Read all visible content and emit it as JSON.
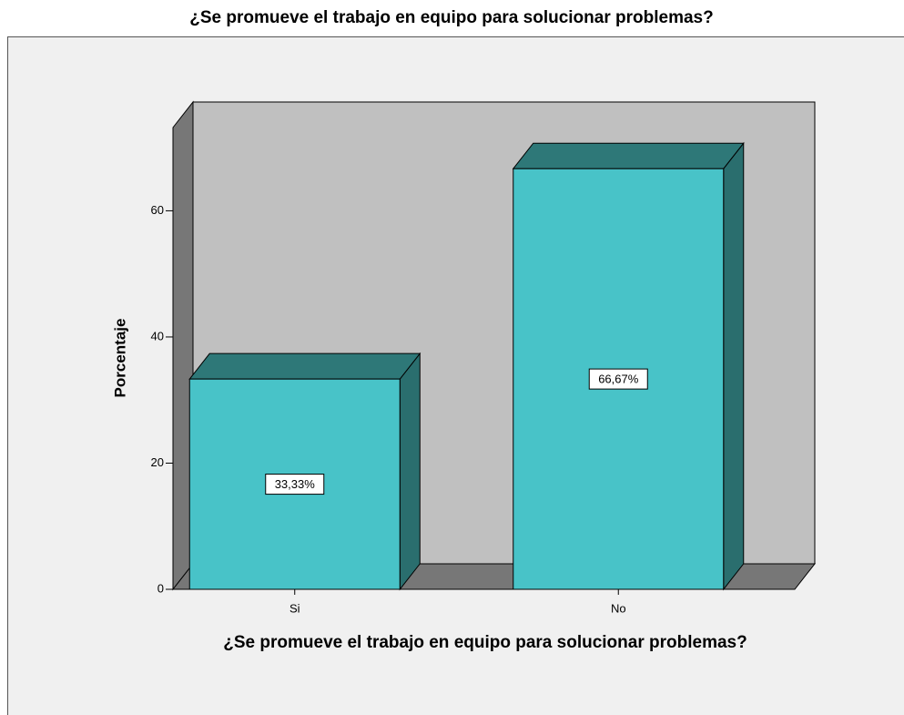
{
  "chart_data": {
    "type": "bar3d",
    "title": "¿Se promueve el trabajo en equipo para solucionar problemas?",
    "x_label": "¿Se promueve el trabajo en equipo para solucionar problemas?",
    "y_label": "Porcentaje",
    "categories": [
      "Si",
      "No"
    ],
    "values": [
      33.33,
      66.67
    ],
    "value_labels": [
      "33,33%",
      "66,67%"
    ],
    "color": "#48c3c8",
    "ylim": [
      0,
      73.2
    ],
    "yticks": [
      0,
      20,
      40,
      60
    ]
  }
}
